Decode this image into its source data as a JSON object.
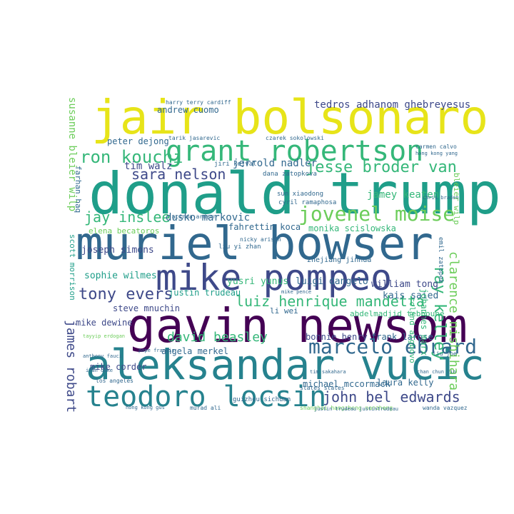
{
  "palette": {
    "yellow": "#e7e419",
    "lime": "#b5de2b",
    "lightgreen": "#6ccd5a",
    "green": "#35b779",
    "teal": "#1f9e89",
    "tealblue": "#26828e",
    "blue": "#31688e",
    "darkblue": "#3e4989",
    "purple": "#482878",
    "dark": "#440154"
  },
  "words": [
    {
      "text": "jair bolsonaro",
      "color": "yellow"
    },
    {
      "text": "donald trump",
      "color": "teal"
    },
    {
      "text": "muriel bowser",
      "color": "blue"
    },
    {
      "text": "gavin newsom",
      "color": "dark"
    },
    {
      "text": "aleksandar vucic",
      "color": "tealblue"
    },
    {
      "text": "mike pompeo",
      "color": "darkblue"
    },
    {
      "text": "grant robertson",
      "color": "green"
    },
    {
      "text": "teodoro locsin",
      "color": "tealblue"
    },
    {
      "text": "marcelo ebrard",
      "color": "blue"
    },
    {
      "text": "jovenel moise",
      "color": "lightgreen"
    },
    {
      "text": "ron kouchi",
      "color": "green"
    },
    {
      "text": "jesse broder van",
      "color": "green"
    },
    {
      "text": "luiz henrique mandetta",
      "color": "green"
    },
    {
      "text": "tony evers",
      "color": "darkblue"
    },
    {
      "text": "sara nelson",
      "color": "darkblue"
    },
    {
      "text": "jay inslee",
      "color": "green"
    },
    {
      "text": "david beasley",
      "color": "green"
    },
    {
      "text": "john bel edwards",
      "color": "darkblue"
    },
    {
      "text": "tedros adhanom ghebreyesus",
      "color": "darkblue"
    },
    {
      "text": "ray kelley",
      "color": "green"
    },
    {
      "text": "clarence nishihara",
      "color": "lightgreen"
    },
    {
      "text": "james robart",
      "color": "darkblue"
    },
    {
      "text": "susanne bleier wilp",
      "color": "lightgreen"
    },
    {
      "text": "tim walz",
      "color": "darkblue"
    },
    {
      "text": "jerrold nadler",
      "color": "blue"
    },
    {
      "text": "andrew cuomo",
      "color": "blue"
    },
    {
      "text": "peter dejong",
      "color": "blue"
    },
    {
      "text": "jamey keaten",
      "color": "green"
    },
    {
      "text": "dusko markovic",
      "color": "blue"
    },
    {
      "text": "fahrettin koca",
      "color": "blue"
    },
    {
      "text": "monika scislowska",
      "color": "green"
    },
    {
      "text": "elena becatoros",
      "color": "lightgreen"
    },
    {
      "text": "yusri yunus",
      "color": "green"
    },
    {
      "text": "luigi dangelo",
      "color": "blue"
    },
    {
      "text": "william tong",
      "color": "darkblue"
    },
    {
      "text": "joseph simons",
      "color": "darkblue"
    },
    {
      "text": "sophie wilmes",
      "color": "teal"
    },
    {
      "text": "justin trudeau",
      "color": "teal"
    },
    {
      "text": "kais saied",
      "color": "blue"
    },
    {
      "text": "steve mnuchin",
      "color": "darkblue"
    },
    {
      "text": "mike dewine",
      "color": "darkblue"
    },
    {
      "text": "mike corder",
      "color": "darkblue"
    },
    {
      "text": "angela merkel",
      "color": "blue"
    },
    {
      "text": "bonnie henry",
      "color": "darkblue"
    },
    {
      "text": "frank larose",
      "color": "blue"
    },
    {
      "text": "michael mccormack",
      "color": "blue"
    },
    {
      "text": "laura kelly",
      "color": "blue"
    },
    {
      "text": "johannes marx",
      "color": "green"
    },
    {
      "text": "roland aigbovo",
      "color": "green"
    },
    {
      "text": "abdelmadjid tebboune",
      "color": "green"
    },
    {
      "text": "scott morrison",
      "color": "teal"
    },
    {
      "text": "farhan haq",
      "color": "blue"
    },
    {
      "text": "bleier wilp",
      "color": "lightgreen"
    },
    {
      "text": "zhejiang jinhua",
      "color": "blue"
    },
    {
      "text": "dana zatopkova",
      "color": "blue"
    },
    {
      "text": "jiri kejval",
      "color": "blue"
    },
    {
      "text": "cyril ramaphosa",
      "color": "blue"
    },
    {
      "text": "sun xiaodong",
      "color": "blue"
    },
    {
      "text": "emil zatopek",
      "color": "blue"
    },
    {
      "text": "li wei",
      "color": "blue"
    },
    {
      "text": "liu yi zhan",
      "color": "blue"
    },
    {
      "text": "guizhou sichuan",
      "color": "blue"
    },
    {
      "text": "shanghai hangzhong nanzheng",
      "color": "lightgreen"
    },
    {
      "text": "tarik jasarevic",
      "color": "blue"
    },
    {
      "text": "harry terry cardiff",
      "color": "blue"
    },
    {
      "text": "czarek sokolowski",
      "color": "blue"
    },
    {
      "text": "jacinda ardern",
      "color": "blue"
    },
    {
      "text": "nicky arison",
      "color": "blue"
    },
    {
      "text": "anthony fauci",
      "color": "blue"
    },
    {
      "text": "tayyip erdogan",
      "color": "lightgreen"
    },
    {
      "text": "murad ali",
      "color": "blue"
    },
    {
      "text": "wanda vazquez",
      "color": "blue"
    },
    {
      "text": "liu joe",
      "color": "blue"
    },
    {
      "text": "carmen calvo",
      "color": "blue"
    },
    {
      "text": "hong kong yang",
      "color": "blue"
    },
    {
      "text": "chan chun lin",
      "color": "blue"
    },
    {
      "text": "chris braden",
      "color": "blue"
    },
    {
      "text": "ivan duke",
      "color": "blue"
    },
    {
      "text": "los angeles",
      "color": "blue"
    },
    {
      "text": "states states",
      "color": "blue"
    },
    {
      "text": "mike pence",
      "color": "blue"
    },
    {
      "text": "tim sakahara",
      "color": "blue"
    },
    {
      "text": "pope francis",
      "color": "blue"
    },
    {
      "text": "hong kong gus",
      "color": "blue"
    },
    {
      "text": "justin trudeau justintrudeau",
      "color": "blue"
    }
  ]
}
